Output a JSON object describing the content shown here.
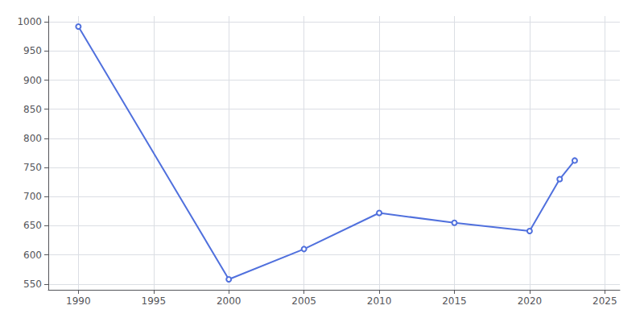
{
  "chart_data": {
    "type": "line",
    "x": [
      1990,
      2000,
      2005,
      2010,
      2015,
      2020,
      2022,
      2023
    ],
    "values": [
      992,
      558,
      610,
      672,
      655,
      641,
      730,
      762
    ],
    "xlim": [
      1988,
      2026
    ],
    "ylim": [
      540,
      1010
    ],
    "xticks": [
      1990,
      1995,
      2000,
      2005,
      2010,
      2015,
      2020,
      2025
    ],
    "yticks": [
      550,
      600,
      650,
      700,
      750,
      800,
      850,
      900,
      950,
      1000
    ],
    "grid": true
  }
}
